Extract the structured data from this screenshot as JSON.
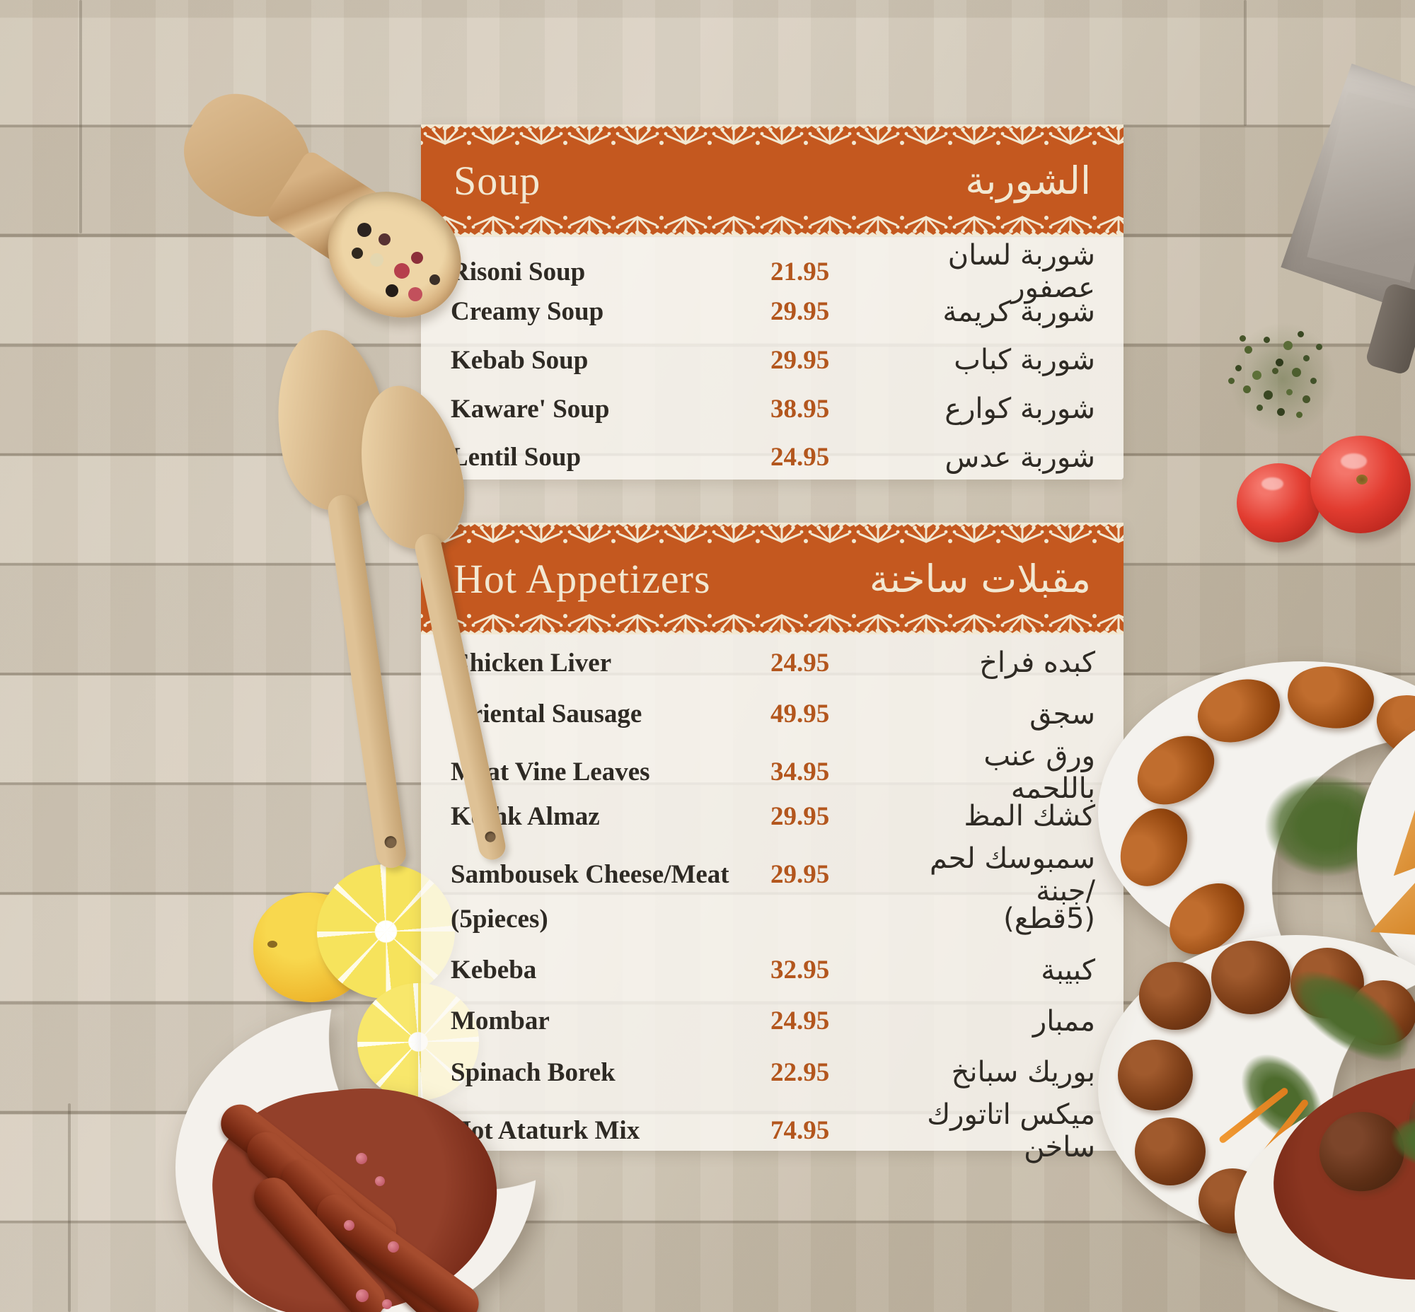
{
  "menu": {
    "colors": {
      "accent_orange": "#c4581f",
      "lace_cream": "#f2e8d2",
      "price_color": "#b3561d",
      "text_color": "#2e2a24"
    },
    "sections": [
      {
        "id": "soup",
        "title_en": "Soup",
        "title_ar": "الشوربة",
        "items": [
          {
            "name_en": "Risoni Soup",
            "price": "21.95",
            "name_ar": "شوربة لسان عصفور"
          },
          {
            "name_en": "Creamy Soup",
            "price": "29.95",
            "name_ar": "شوربة كريمة"
          },
          {
            "name_en": "Kebab Soup",
            "price": "29.95",
            "name_ar": "شوربة كباب"
          },
          {
            "name_en": "Kaware' Soup",
            "price": "38.95",
            "name_ar": "شوربة كوارع"
          },
          {
            "name_en": "Lentil Soup",
            "price": "24.95",
            "name_ar": "شوربة عدس"
          }
        ]
      },
      {
        "id": "hot-appetizers",
        "title_en": "Hot Appetizers",
        "title_ar": "مقبلات ساخنة",
        "items": [
          {
            "name_en": "Chicken Liver",
            "price": "24.95",
            "name_ar": "كبده فراخ"
          },
          {
            "name_en": "Oriental Sausage",
            "price": "49.95",
            "name_ar": "سجق"
          },
          {
            "name_en": "Meat Vine Leaves",
            "price": "34.95",
            "name_ar": "ورق عنب باللحمه"
          },
          {
            "name_en": "Keshk Almaz",
            "price": "29.95",
            "name_ar": "كشك المظ"
          },
          {
            "name_en": "Sambousek Cheese/Meat",
            "price": "29.95",
            "name_ar": "سمبوسك لحم /جبنة"
          },
          {
            "name_en": "(5pieces)",
            "price": "",
            "name_ar": "(5قطع)"
          },
          {
            "name_en": "Kebeba",
            "price": "32.95",
            "name_ar": "كبيبة"
          },
          {
            "name_en": "Mombar",
            "price": "24.95",
            "name_ar": "ممبار"
          },
          {
            "name_en": "Spinach Borek",
            "price": "22.95",
            "name_ar": "بوريك سبانخ"
          },
          {
            "name_en": "Hot Ataturk Mix",
            "price": "74.95",
            "name_ar": "ميكس اتاتورك ساخن"
          }
        ]
      }
    ],
    "decor_photos": [
      "wooden-spice-scoop",
      "metal-grater",
      "dried-herbs",
      "tomatoes",
      "wooden-spatulas",
      "lemon-slices",
      "sausage-bowl",
      "kibbeh-plate",
      "samosa-plate",
      "meatball-plate",
      "meat-stew-bowl"
    ]
  }
}
